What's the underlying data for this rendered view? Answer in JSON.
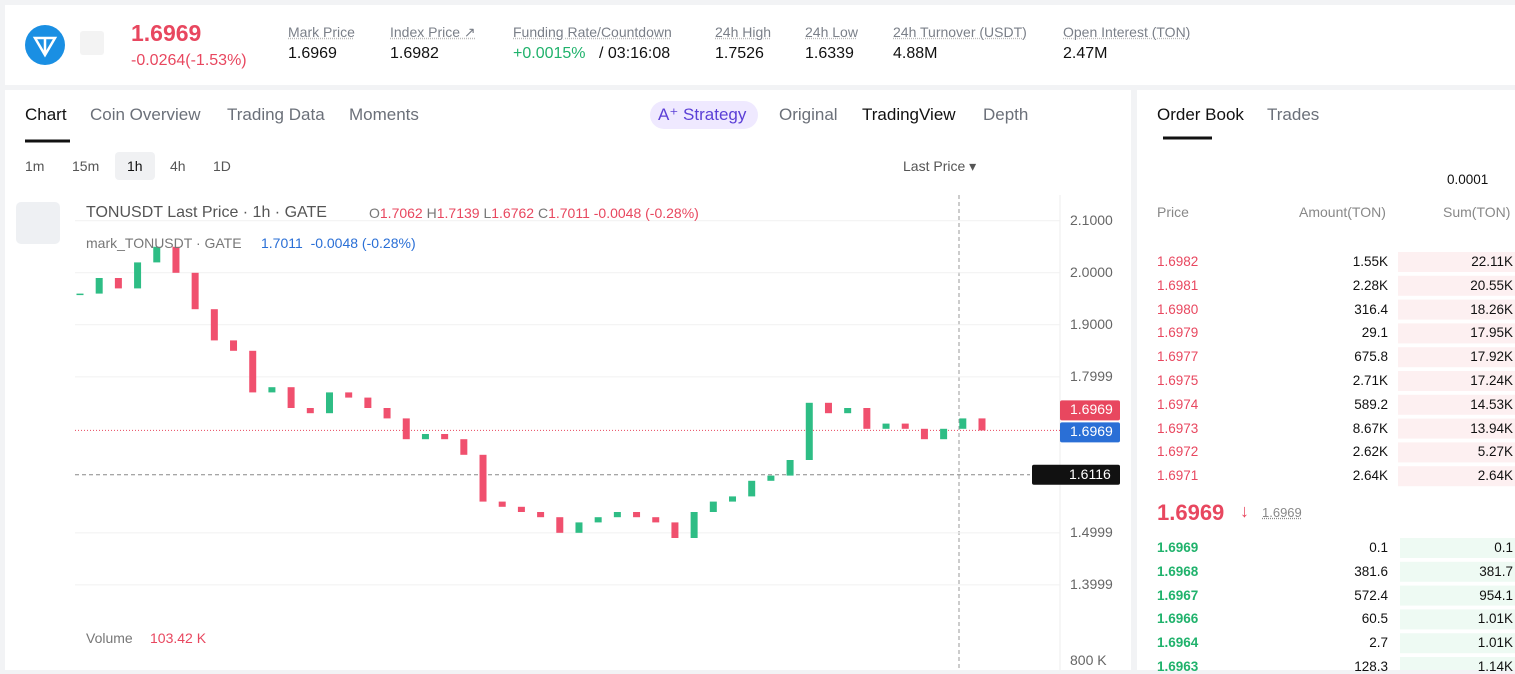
{
  "ticker": {
    "price": "1.6969",
    "change": "-0.0264(-1.53%)",
    "stats": [
      {
        "label": "Mark Price",
        "value": "1.6969"
      },
      {
        "label": "Index Price ↗",
        "value": "1.6982"
      },
      {
        "label": "Funding Rate/Countdown",
        "value": "+0.0015%",
        "value2": "/ 03:16:08"
      },
      {
        "label": "24h High",
        "value": "1.7526"
      },
      {
        "label": "24h Low",
        "value": "1.6339"
      },
      {
        "label": "24h Turnover (USDT)",
        "value": "4.88M"
      },
      {
        "label": "Open Interest (TON)",
        "value": "2.47M"
      }
    ]
  },
  "tabs": [
    "Chart",
    "Coin Overview",
    "Trading Data",
    "Moments"
  ],
  "views": {
    "strategy": "Strategy",
    "items": [
      "Original",
      "TradingView",
      "Depth"
    ]
  },
  "intervals": [
    "1m",
    "15m",
    "1h",
    "4h",
    "1D"
  ],
  "price_type": "Last Price",
  "chart": {
    "legend1": "TONUSDT Last Price · 1h · GATE",
    "ohlc": [
      {
        "k": "O",
        "v": "1.7062"
      },
      {
        "k": "H",
        "v": "1.7139"
      },
      {
        "k": "L",
        "v": "1.6762"
      },
      {
        "k": "C",
        "v": "1.7011"
      }
    ],
    "change": "-0.0048 (-0.28%)",
    "legend2": "mark_TONUSDT · GATE",
    "mark_value": "1.7011",
    "mark_change": "-0.0048 (-0.28%)",
    "ylim": [
      1.3,
      2.14
    ],
    "yticks": [
      {
        "value": 2.1,
        "label": "2.1000"
      },
      {
        "value": 2.0,
        "label": "2.0000"
      },
      {
        "value": 1.9,
        "label": "1.9000"
      },
      {
        "value": 1.7999,
        "label": "1.7999"
      },
      {
        "value": 1.4999,
        "label": "1.4999"
      },
      {
        "value": 1.3999,
        "label": "1.3999"
      }
    ],
    "last_price": 1.6969,
    "mark_price": 1.6969,
    "cursor_price": 1.6116,
    "closes": [
      1.96,
      1.99,
      1.97,
      2.02,
      2.05,
      2.0,
      1.93,
      1.87,
      1.85,
      1.77,
      1.78,
      1.74,
      1.73,
      1.77,
      1.76,
      1.74,
      1.72,
      1.68,
      1.69,
      1.68,
      1.65,
      1.56,
      1.55,
      1.54,
      1.53,
      1.5,
      1.52,
      1.53,
      1.54,
      1.53,
      1.52,
      1.49,
      1.54,
      1.56,
      1.57,
      1.6,
      1.61,
      1.64,
      1.75,
      1.73,
      1.74,
      1.7,
      1.71,
      1.7,
      1.68,
      1.7,
      1.72,
      1.6969
    ],
    "volume_label": "Volume",
    "volume_value": "103.42 K",
    "volume_tick": "800 K"
  },
  "orderbook": {
    "tabs": [
      "Order Book",
      "Trades"
    ],
    "step": "0.0001",
    "headers": [
      "Price",
      "Amount(TON)",
      "Sum(TON)"
    ],
    "asks": [
      [
        "1.6982",
        "1.55K",
        "22.11K"
      ],
      [
        "1.6981",
        "2.28K",
        "20.55K"
      ],
      [
        "1.6980",
        "316.4",
        "18.26K"
      ],
      [
        "1.6979",
        "29.1",
        "17.95K"
      ],
      [
        "1.6977",
        "675.8",
        "17.92K"
      ],
      [
        "1.6975",
        "2.71K",
        "17.24K"
      ],
      [
        "1.6974",
        "589.2",
        "14.53K"
      ],
      [
        "1.6973",
        "8.67K",
        "13.94K"
      ],
      [
        "1.6972",
        "2.62K",
        "5.27K"
      ],
      [
        "1.6971",
        "2.64K",
        "2.64K"
      ]
    ],
    "mid": "1.6969",
    "mid_mark": "1.6969",
    "bids": [
      [
        "1.6969",
        "0.1",
        "0.1"
      ],
      [
        "1.6968",
        "381.6",
        "381.7"
      ],
      [
        "1.6967",
        "572.4",
        "954.1"
      ],
      [
        "1.6966",
        "60.5",
        "1.01K"
      ],
      [
        "1.6964",
        "2.7",
        "1.01K"
      ],
      [
        "1.6963",
        "128.3",
        "1.14K"
      ]
    ]
  }
}
